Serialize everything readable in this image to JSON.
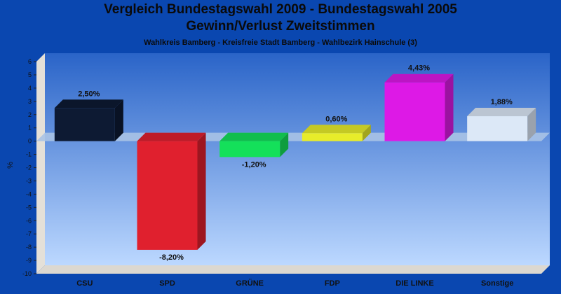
{
  "chart_data": {
    "type": "bar",
    "title": "Vergleich Bundestagswahl 2009 - Bundestagswahl 2005",
    "subtitle": "Gewinn/Verlust Zweitstimmen",
    "caption": "Wahlkreis Bamberg - Kreisfreie Stadt Bamberg - Wahlbezirk Hainschule (3)",
    "xlabel": "",
    "ylabel": "%",
    "ylim": [
      -10,
      6
    ],
    "yticks": [
      6,
      5,
      4,
      3,
      2,
      1,
      0,
      -1,
      -2,
      -3,
      -4,
      -5,
      -6,
      -7,
      -8,
      -9,
      -10
    ],
    "grid": false,
    "categories": [
      "CSU",
      "SPD",
      "GRÜNE",
      "FDP",
      "DIE LINKE",
      "Sonstige"
    ],
    "values": [
      2.5,
      -8.2,
      -1.2,
      0.6,
      4.43,
      1.88
    ],
    "value_labels": [
      "2,50%",
      "-8,20%",
      "-1,20%",
      "0,60%",
      "4,43%",
      "1,88%"
    ],
    "colors": [
      "#0d1a33",
      "#e0202e",
      "#14e05a",
      "#e8ec2a",
      "#dd19e6",
      "#dce8f7"
    ]
  }
}
